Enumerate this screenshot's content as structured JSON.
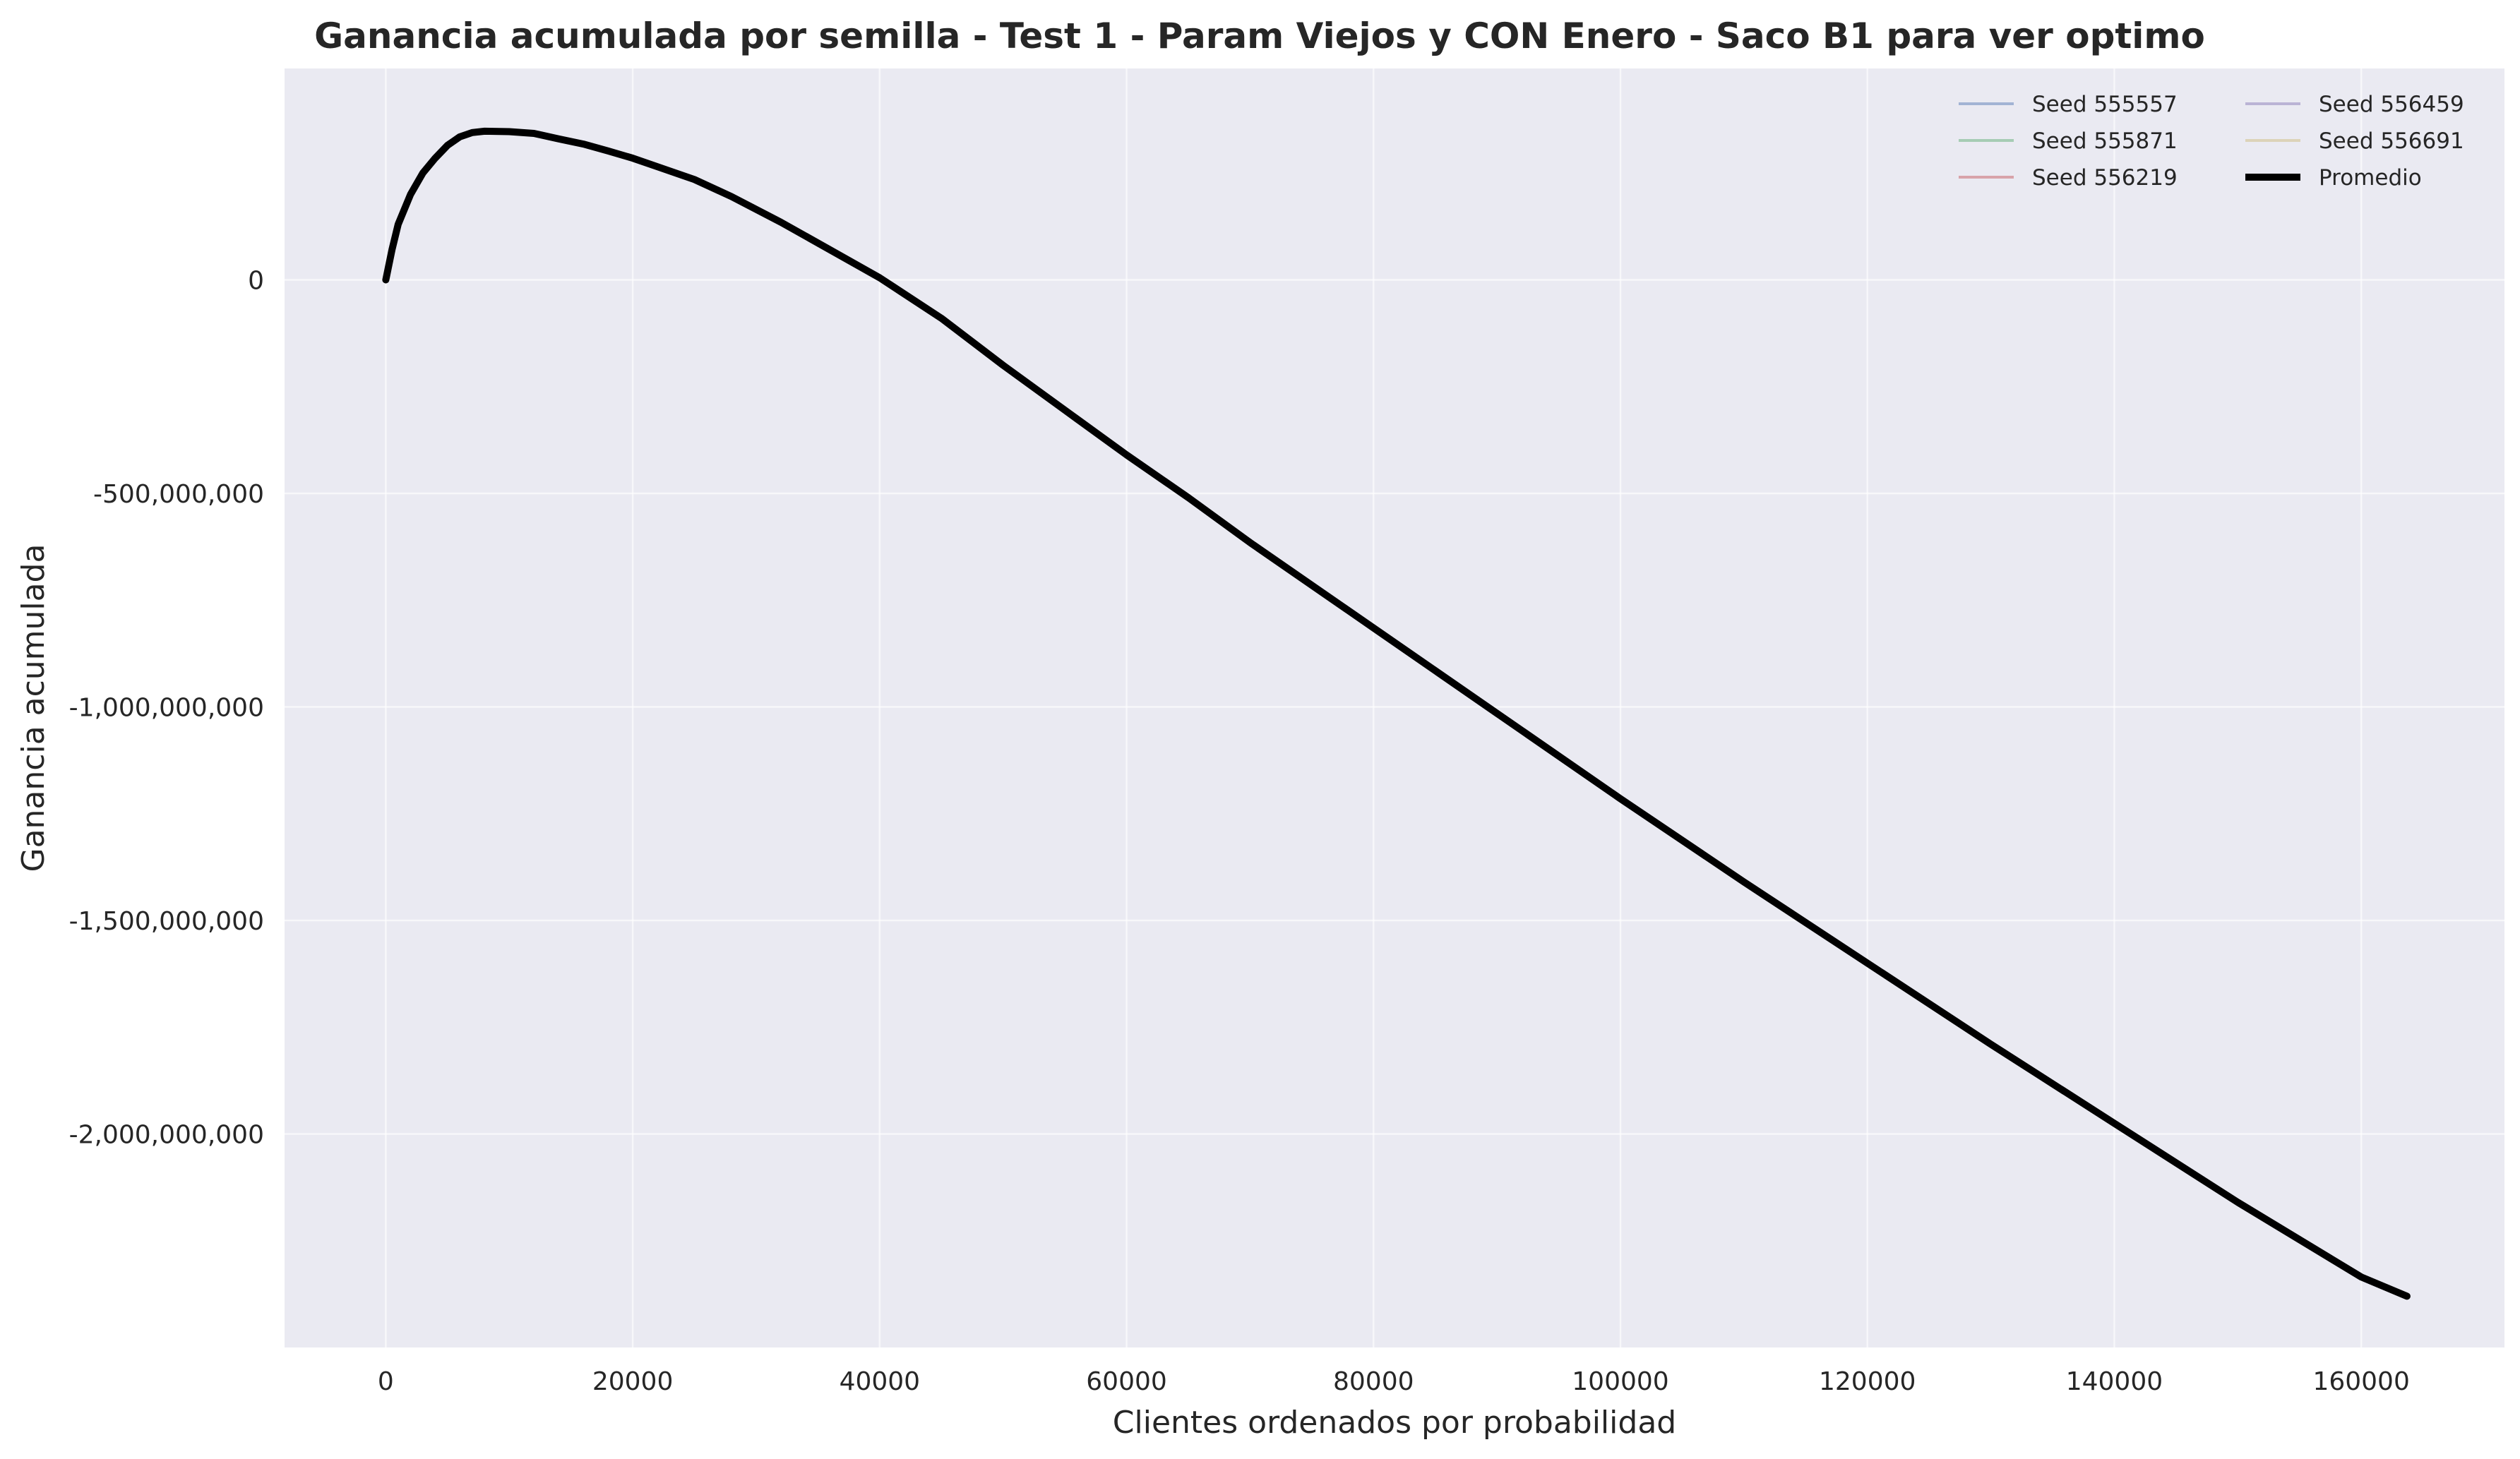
{
  "chart_data": {
    "type": "line",
    "title": "Ganancia acumulada por semilla - Test 1 - Param Viejos y CON Enero - Saco B1 para ver optimo",
    "xlabel": "Clientes ordenados por probabilidad",
    "ylabel": "Ganancia acumulada",
    "xlim": [
      -8200,
      171600
    ],
    "ylim": [
      -2500000000,
      495000000
    ],
    "x_ticks": [
      0,
      20000,
      40000,
      60000,
      80000,
      100000,
      120000,
      140000,
      160000
    ],
    "x_tick_labels": [
      "0",
      "20000",
      "40000",
      "60000",
      "80000",
      "100000",
      "120000",
      "140000",
      "160000"
    ],
    "y_ticks": [
      0,
      -500000000,
      -1000000000,
      -1500000000,
      -2000000000
    ],
    "y_tick_labels": [
      "0",
      "-500,000,000",
      "-1,000,000,000",
      "-1,500,000,000",
      "-2,000,000,000"
    ],
    "grid": true,
    "legend_position": "top-right",
    "legend_columns": 2,
    "series": [
      {
        "name": "Seed 555557",
        "color": "#4c72b0",
        "alpha": 0.35,
        "width": 1.5
      },
      {
        "name": "Seed 555871",
        "color": "#55a868",
        "alpha": 0.35,
        "width": 1.5
      },
      {
        "name": "Seed 556219",
        "color": "#c44e52",
        "alpha": 0.35,
        "width": 1.5
      },
      {
        "name": "Seed 556459",
        "color": "#8172b2",
        "alpha": 0.35,
        "width": 1.5
      },
      {
        "name": "Seed 556691",
        "color": "#ccb974",
        "alpha": 0.35,
        "width": 1.5
      },
      {
        "name": "Promedio",
        "color": "#000000",
        "alpha": 1.0,
        "width": 4
      }
    ],
    "x": [
      0,
      500,
      1000,
      2000,
      3000,
      4000,
      5000,
      6000,
      7000,
      8000,
      10000,
      12000,
      14000,
      16000,
      18000,
      20000,
      22000,
      25000,
      28000,
      32000,
      36000,
      40000,
      45000,
      50000,
      55000,
      60000,
      65000,
      70000,
      80000,
      90000,
      100000,
      110000,
      120000,
      130000,
      140000,
      150000,
      160000,
      163700
    ],
    "values": [
      0,
      70000000,
      130000000,
      200000000,
      250000000,
      285000000,
      315000000,
      335000000,
      345000000,
      348000000,
      347000000,
      343000000,
      330000000,
      318000000,
      302000000,
      285000000,
      265000000,
      235000000,
      195000000,
      135000000,
      70000000,
      5000000,
      -90000000,
      -200000000,
      -305000000,
      -410000000,
      -510000000,
      -615000000,
      -815000000,
      -1015000000,
      -1215000000,
      -1410000000,
      -1600000000,
      -1790000000,
      -1975000000,
      -2160000000,
      -2335000000,
      -2380000000
    ]
  }
}
